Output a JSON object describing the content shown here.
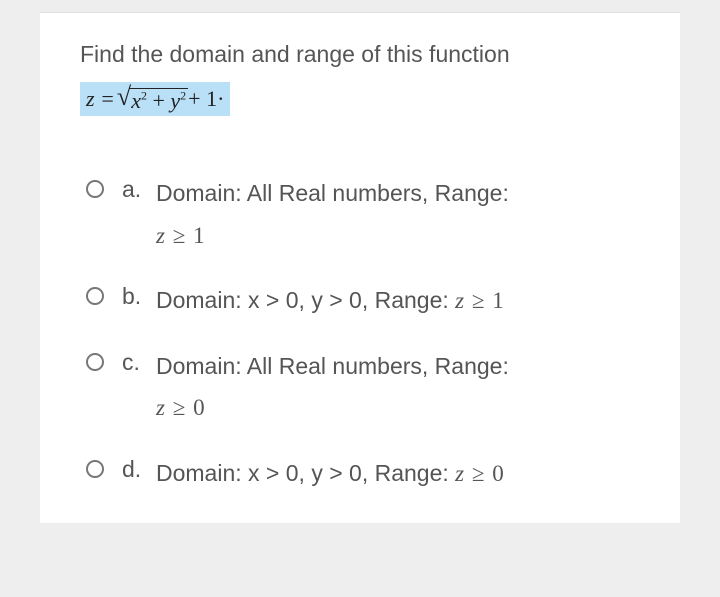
{
  "question": {
    "text": "Find the domain and range of this function",
    "fontsize": 23,
    "color": "#555555"
  },
  "formula": {
    "lhs": "z =",
    "radicand": "x² + y²",
    "tail": " + 1·",
    "highlight_color": "#b9e0f7",
    "text_color": "#222222",
    "font": "Times New Roman",
    "fontsize": 22
  },
  "options": [
    {
      "letter": "a.",
      "prefix": "Domain: All Real numbers, Range:",
      "range_inline": false,
      "range_expr": "z ≥ 1"
    },
    {
      "letter": "b.",
      "prefix": "Domain: x > 0, y > 0, Range: ",
      "range_inline": true,
      "range_expr": "z ≥ 1"
    },
    {
      "letter": "c.",
      "prefix": "Domain: All Real numbers, Range:",
      "range_inline": false,
      "range_expr": "z ≥ 0"
    },
    {
      "letter": "d.",
      "prefix": "Domain: x > 0, y > 0, Range: ",
      "range_inline": true,
      "range_expr": "z ≥ 0"
    }
  ],
  "styling": {
    "card_background": "#ffffff",
    "page_background": "#eeeeee",
    "body_color": "#555555",
    "body_fontsize": 23,
    "radio_border": "#777777",
    "radio_size": 18
  }
}
